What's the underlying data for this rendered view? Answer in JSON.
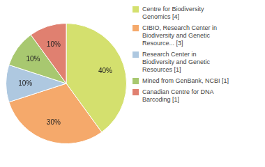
{
  "chart_data": {
    "type": "pie",
    "categories": [
      "Centre for Biodiversity\nGenomics [4]",
      "CIBIO, Research Center in\nBiodiversity and Genetic\nResource... [3]",
      "Research Center in\nBiodiversity and Genetic\nResources [1]",
      "Mined from GenBank, NCBI [1]",
      "Canadian Centre for DNA\nBarcoding [1]"
    ],
    "values": [
      40,
      30,
      10,
      10,
      10
    ],
    "value_labels": [
      "40%",
      "30%",
      "10%",
      "10%",
      "10%"
    ],
    "colors": [
      "#d4e06e",
      "#f5a96b",
      "#aec8e0",
      "#a8c870",
      "#e08070"
    ],
    "data_labels": true,
    "legend": "right"
  }
}
